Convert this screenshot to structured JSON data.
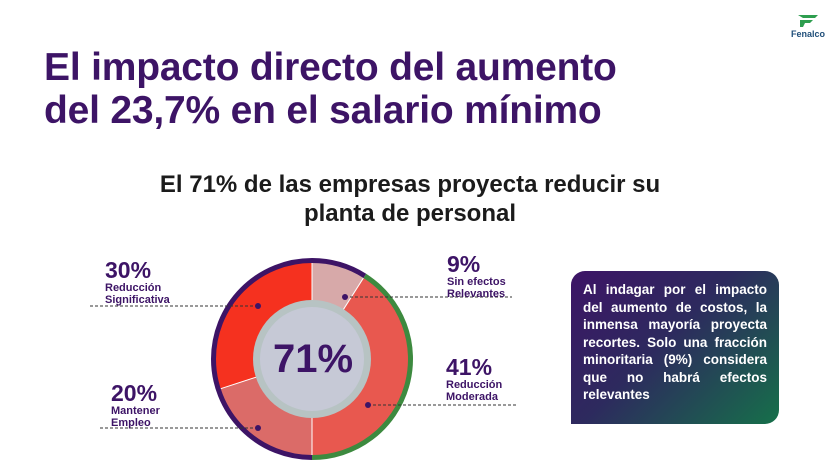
{
  "brand": {
    "name": "Fenalco",
    "logo_icon": "fenalco-logo-icon",
    "color": "#1f4e79",
    "icon_color": "#2e9e4f"
  },
  "title": {
    "line1": "El impacto directo del aumento",
    "line2": "del 23,7% en el salario mínimo"
  },
  "subtitle": {
    "line1": "El 71% de las empresas proyecta reducir su",
    "line2": "planta de personal"
  },
  "callout": {
    "text": "Al indagar por el impacto del aumento de costos, la inmensa mayoría proyecta recortes. Solo una fracción minoritaria (9%) considera que no habrá efectos relevantes"
  },
  "chart_data": {
    "type": "pie",
    "style": "donut",
    "center_label": "71%",
    "slices": [
      {
        "label": "Sin efectos Relevantes",
        "label_lines": [
          "Sin efectos",
          "Relevantes"
        ],
        "value": 9,
        "display": "9%",
        "color": "#d7a9a9"
      },
      {
        "label": "Reducción Moderada",
        "label_lines": [
          "Reducción",
          "Moderada"
        ],
        "value": 41,
        "display": "41%",
        "color": "#e8584f"
      },
      {
        "label": "Mantener Empleo",
        "label_lines": [
          "Mantener",
          "Empleo"
        ],
        "value": 20,
        "display": "20%",
        "color": "#db6b68"
      },
      {
        "label": "Reducción Significativa",
        "label_lines": [
          "Reducción",
          "Significativa"
        ],
        "value": 30,
        "display": "30%",
        "color": "#f5311f"
      }
    ],
    "ring_colors": {
      "reduction": "#3d8a3f",
      "other": "#3d1466"
    },
    "center_color": "#c6c9d6",
    "center_ring_color": "#b7c3c3"
  }
}
